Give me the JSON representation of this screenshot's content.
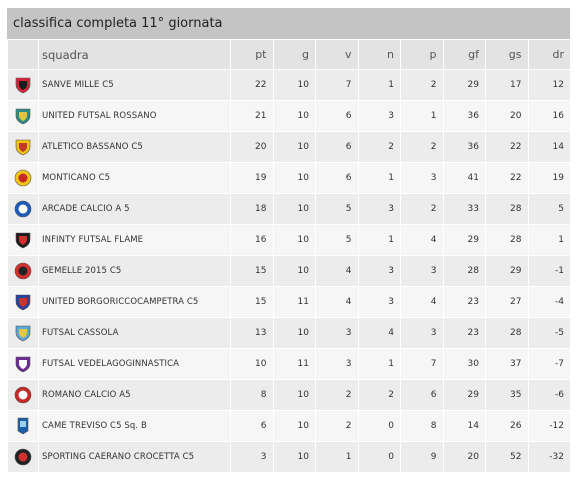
{
  "title": "classifica completa 11° giornata",
  "columns": {
    "team": "squadra",
    "pt": "pt",
    "g": "g",
    "v": "v",
    "n": "n",
    "p": "p",
    "gf": "gf",
    "gs": "gs",
    "dr": "dr"
  },
  "rows": [
    {
      "team": "SANVE MILLE C5",
      "pt": "22",
      "g": "10",
      "v": "7",
      "n": "1",
      "p": "2",
      "gf": "29",
      "gs": "17",
      "dr": "12",
      "crest": {
        "icon": "shield-red-black-crest",
        "c1": "#d8233a",
        "c2": "#1b1b1b",
        "shape": "shield"
      }
    },
    {
      "team": "UNITED FUTSAL ROSSANO",
      "pt": "21",
      "g": "10",
      "v": "6",
      "n": "3",
      "p": "1",
      "gf": "36",
      "gs": "20",
      "dr": "16",
      "crest": {
        "icon": "eagle-teal-crest",
        "c1": "#2e8c86",
        "c2": "#e3c53b",
        "shape": "shield"
      }
    },
    {
      "team": "ATLETICO BASSANO C5",
      "pt": "20",
      "g": "10",
      "v": "6",
      "n": "2",
      "p": "2",
      "gf": "36",
      "gs": "22",
      "dr": "14",
      "crest": {
        "icon": "shield-yellow-red-crest",
        "c1": "#f1c40f",
        "c2": "#c0392b",
        "shape": "shield"
      }
    },
    {
      "team": "MONTICANO C5",
      "pt": "19",
      "g": "10",
      "v": "6",
      "n": "1",
      "p": "3",
      "gf": "41",
      "gs": "22",
      "dr": "19",
      "crest": {
        "icon": "round-yellow-red-crest",
        "c1": "#f0c419",
        "c2": "#c62828",
        "shape": "circle"
      }
    },
    {
      "team": "ARCADE CALCIO A 5",
      "pt": "18",
      "g": "10",
      "v": "5",
      "n": "3",
      "p": "2",
      "gf": "33",
      "gs": "28",
      "dr": "5",
      "crest": {
        "icon": "round-blue-white-crest",
        "c1": "#1e5bb8",
        "c2": "#ffffff",
        "shape": "circle"
      }
    },
    {
      "team": "INFINTY FUTSAL FLAME",
      "pt": "16",
      "g": "10",
      "v": "5",
      "n": "1",
      "p": "4",
      "gf": "29",
      "gs": "28",
      "dr": "1",
      "crest": {
        "icon": "flame-black-red-crest",
        "c1": "#1b1b1b",
        "c2": "#d32f2f",
        "shape": "shield"
      }
    },
    {
      "team": "GEMELLE 2015 C5",
      "pt": "15",
      "g": "10",
      "v": "4",
      "n": "3",
      "p": "3",
      "gf": "28",
      "gs": "29",
      "dr": "-1",
      "crest": {
        "icon": "round-red-black-crest",
        "c1": "#d32f2f",
        "c2": "#222222",
        "shape": "circle"
      }
    },
    {
      "team": "UNITED BORGORICCOCAMPETRA C5",
      "pt": "15",
      "g": "11",
      "v": "4",
      "n": "3",
      "p": "4",
      "gf": "23",
      "gs": "27",
      "dr": "-4",
      "crest": {
        "icon": "shield-blue-red-crest",
        "c1": "#2a3f9e",
        "c2": "#d32f2f",
        "shape": "shield"
      }
    },
    {
      "team": "FUTSAL CASSOLA",
      "pt": "13",
      "g": "10",
      "v": "3",
      "n": "4",
      "p": "3",
      "gf": "23",
      "gs": "28",
      "dr": "-5",
      "crest": {
        "icon": "shield-lightblue-crest",
        "c1": "#5aa8d8",
        "c2": "#e8c547",
        "shape": "shield"
      }
    },
    {
      "team": "FUTSAL VEDELAGOGINNASTICA",
      "pt": "10",
      "g": "11",
      "v": "3",
      "n": "1",
      "p": "7",
      "gf": "30",
      "gs": "37",
      "dr": "-7",
      "crest": {
        "icon": "shield-purple-crest",
        "c1": "#6a2c91",
        "c2": "#ffffff",
        "shape": "shield"
      }
    },
    {
      "team": "ROMANO CALCIO A5",
      "pt": "8",
      "g": "10",
      "v": "2",
      "n": "2",
      "p": "6",
      "gf": "29",
      "gs": "35",
      "dr": "-6",
      "crest": {
        "icon": "round-red-white-crest",
        "c1": "#c62828",
        "c2": "#ffffff",
        "shape": "circle"
      }
    },
    {
      "team": "CAME TREVISO C5 Sq. B",
      "pt": "6",
      "g": "10",
      "v": "2",
      "n": "0",
      "p": "8",
      "gf": "14",
      "gs": "26",
      "dr": "-12",
      "crest": {
        "icon": "pennant-blue-crest",
        "c1": "#1a5fa8",
        "c2": "#9ad0f0",
        "shape": "pennant"
      }
    },
    {
      "team": "SPORTING CAERANO CROCETTA C5",
      "pt": "3",
      "g": "10",
      "v": "1",
      "n": "0",
      "p": "9",
      "gf": "20",
      "gs": "52",
      "dr": "-32",
      "crest": {
        "icon": "round-red-black-crest",
        "c1": "#222222",
        "c2": "#d32f2f",
        "shape": "circle"
      }
    }
  ]
}
